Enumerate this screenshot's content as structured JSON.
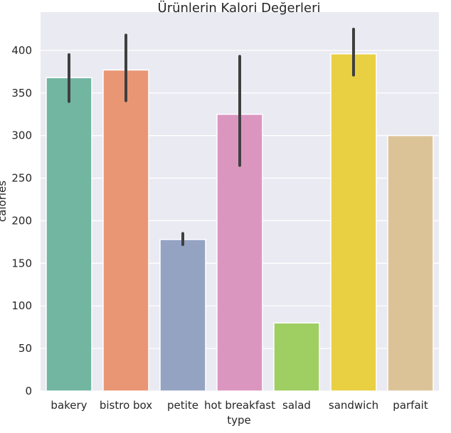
{
  "chart_data": {
    "type": "bar",
    "title": "Ürünlerin Kalori Değerleri",
    "xlabel": "type",
    "ylabel": "calories",
    "categories": [
      "bakery",
      "bistro box",
      "petite",
      "hot breakfast",
      "salad",
      "sandwich",
      "parfait"
    ],
    "values": [
      368,
      377,
      178,
      325,
      80,
      396,
      300
    ],
    "error_low": [
      340,
      341,
      172,
      265,
      80,
      371,
      300
    ],
    "error_high": [
      395,
      418,
      185,
      393,
      80,
      425,
      300
    ],
    "colors": [
      "#72b6a1",
      "#e99675",
      "#95a3c3",
      "#db96c0",
      "#9fce62",
      "#e9d043",
      "#dcc397"
    ],
    "ylim": [
      0,
      445
    ],
    "yticks": [
      0,
      50,
      100,
      150,
      200,
      250,
      300,
      350,
      400
    ],
    "grid": true,
    "background": "#eaeaf2",
    "error_color": "#3f3f3f"
  }
}
